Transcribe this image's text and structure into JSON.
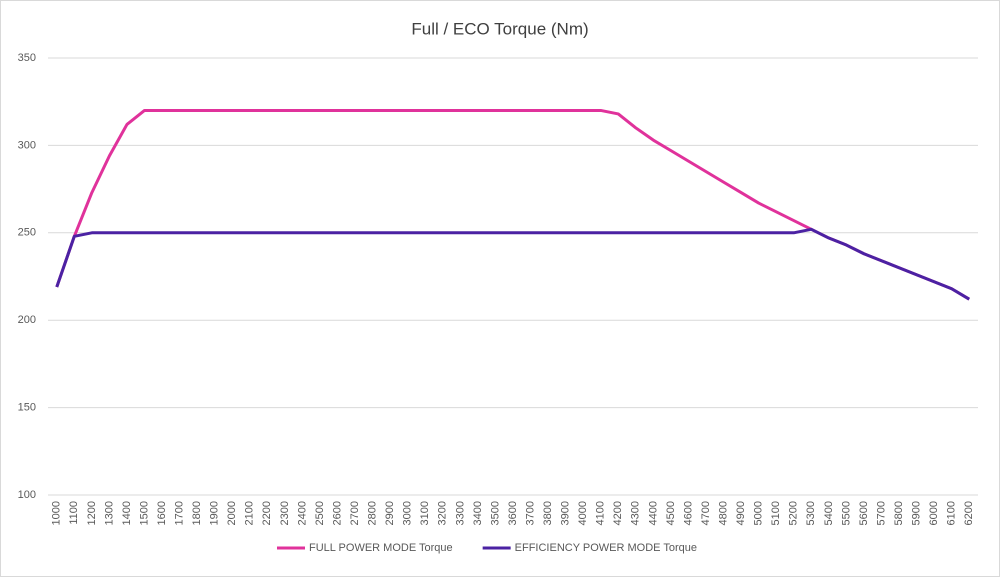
{
  "chart_data": {
    "type": "line",
    "title": "Full / ECO Torque (Nm)",
    "categories": [
      "1000",
      "1100",
      "1200",
      "1300",
      "1400",
      "1500",
      "1600",
      "1700",
      "1800",
      "1900",
      "2000",
      "2100",
      "2200",
      "2300",
      "2400",
      "2500",
      "2600",
      "2700",
      "2800",
      "2900",
      "3000",
      "3100",
      "3200",
      "3300",
      "3400",
      "3500",
      "3600",
      "3700",
      "3800",
      "3900",
      "4000",
      "4100",
      "4200",
      "4300",
      "4400",
      "4500",
      "4600",
      "4700",
      "4800",
      "4900",
      "5000",
      "5100",
      "5200",
      "5300",
      "5400",
      "5500",
      "5600",
      "5700",
      "5800",
      "5900",
      "6000",
      "6100",
      "6200"
    ],
    "series": [
      {
        "name": "FULL POWER MODE Torque",
        "color": "#e0329b",
        "values": [
          219,
          248,
          273,
          294,
          312,
          320,
          320,
          320,
          320,
          320,
          320,
          320,
          320,
          320,
          320,
          320,
          320,
          320,
          320,
          320,
          320,
          320,
          320,
          320,
          320,
          320,
          320,
          320,
          320,
          320,
          320,
          320,
          318,
          310,
          303,
          297,
          291,
          285,
          279,
          273,
          267,
          262,
          257,
          252,
          247,
          243,
          238,
          234,
          230,
          226,
          222,
          218,
          212
        ]
      },
      {
        "name": "EFFICIENCY POWER MODE Torque",
        "color": "#4b22a3",
        "values": [
          219,
          248,
          250,
          250,
          250,
          250,
          250,
          250,
          250,
          250,
          250,
          250,
          250,
          250,
          250,
          250,
          250,
          250,
          250,
          250,
          250,
          250,
          250,
          250,
          250,
          250,
          250,
          250,
          250,
          250,
          250,
          250,
          250,
          250,
          250,
          250,
          250,
          250,
          250,
          250,
          250,
          250,
          250,
          252,
          247,
          243,
          238,
          234,
          230,
          226,
          222,
          218,
          212
        ]
      }
    ],
    "ylim": [
      100,
      350
    ],
    "yticks": [
      100,
      150,
      200,
      250,
      300,
      350
    ],
    "grid": true,
    "legend": "bottom"
  }
}
